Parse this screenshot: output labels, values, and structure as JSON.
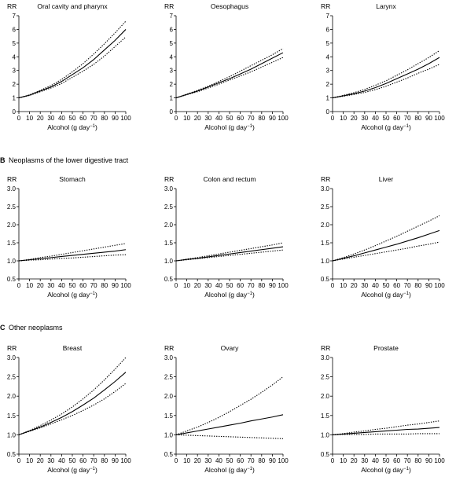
{
  "sections": [
    {
      "label": "B",
      "title": "Neoplasms of the lower digestive tract"
    },
    {
      "label": "C",
      "title": "Other neoplasms"
    }
  ],
  "chart_data": [
    {
      "type": "line",
      "title": "Oral cavity and pharynx",
      "ylabel": "RR",
      "xlabel": "Alcohol (g day",
      "xlabel_sup": "−1",
      "xlabel_end": ")",
      "xlim": [
        0,
        100
      ],
      "ylim": [
        0,
        7
      ],
      "xticks": [
        "0",
        "10",
        "20",
        "30",
        "40",
        "50",
        "60",
        "70",
        "80",
        "90",
        "100"
      ],
      "yticks": [
        "0",
        "1",
        "2",
        "3",
        "4",
        "5",
        "6",
        "7"
      ],
      "x": [
        0,
        10,
        20,
        30,
        40,
        50,
        60,
        70,
        80,
        90,
        100
      ],
      "series": [
        {
          "style": "solid",
          "values": [
            1.0,
            1.2,
            1.5,
            1.8,
            2.2,
            2.7,
            3.2,
            3.8,
            4.5,
            5.2,
            6.0
          ]
        },
        {
          "style": "dotted",
          "values": [
            1.0,
            1.22,
            1.55,
            1.9,
            2.35,
            2.9,
            3.5,
            4.2,
            4.95,
            5.75,
            6.6
          ]
        },
        {
          "style": "dotted",
          "values": [
            1.0,
            1.18,
            1.45,
            1.72,
            2.05,
            2.5,
            2.95,
            3.45,
            4.05,
            4.75,
            5.45
          ]
        }
      ]
    },
    {
      "type": "line",
      "title": "Oesophagus",
      "ylabel": "RR",
      "xlabel": "Alcohol (g day",
      "xlabel_sup": "−1",
      "xlabel_end": ")",
      "xlim": [
        0,
        100
      ],
      "ylim": [
        0,
        7
      ],
      "xticks": [
        "0",
        "10",
        "20",
        "30",
        "40",
        "50",
        "60",
        "70",
        "80",
        "90",
        "100"
      ],
      "yticks": [
        "0",
        "1",
        "2",
        "3",
        "4",
        "5",
        "6",
        "7"
      ],
      "x": [
        0,
        10,
        20,
        30,
        40,
        50,
        60,
        70,
        80,
        90,
        100
      ],
      "series": [
        {
          "style": "solid",
          "values": [
            1.0,
            1.25,
            1.5,
            1.8,
            2.1,
            2.4,
            2.75,
            3.1,
            3.5,
            3.9,
            4.3
          ]
        },
        {
          "style": "dotted",
          "values": [
            1.0,
            1.27,
            1.55,
            1.85,
            2.2,
            2.55,
            2.95,
            3.35,
            3.75,
            4.15,
            4.6
          ]
        },
        {
          "style": "dotted",
          "values": [
            1.0,
            1.23,
            1.45,
            1.72,
            2.0,
            2.3,
            2.6,
            2.9,
            3.25,
            3.6,
            3.95
          ]
        }
      ]
    },
    {
      "type": "line",
      "title": "Larynx",
      "ylabel": "RR",
      "xlabel": "Alcohol (g day",
      "xlabel_sup": "−1",
      "xlabel_end": ")",
      "xlim": [
        0,
        100
      ],
      "ylim": [
        0,
        7
      ],
      "xticks": [
        "0",
        "10",
        "20",
        "30",
        "40",
        "50",
        "60",
        "70",
        "80",
        "90",
        "100"
      ],
      "yticks": [
        "0",
        "1",
        "2",
        "3",
        "4",
        "5",
        "6",
        "7"
      ],
      "x": [
        0,
        10,
        20,
        30,
        40,
        50,
        60,
        70,
        80,
        90,
        100
      ],
      "series": [
        {
          "style": "solid",
          "values": [
            1.0,
            1.15,
            1.3,
            1.5,
            1.75,
            2.05,
            2.4,
            2.75,
            3.1,
            3.5,
            3.95
          ]
        },
        {
          "style": "dotted",
          "values": [
            1.0,
            1.18,
            1.38,
            1.62,
            1.92,
            2.25,
            2.65,
            3.05,
            3.5,
            3.95,
            4.45
          ]
        },
        {
          "style": "dotted",
          "values": [
            1.0,
            1.12,
            1.25,
            1.4,
            1.6,
            1.85,
            2.15,
            2.45,
            2.8,
            3.1,
            3.45
          ]
        }
      ]
    },
    {
      "type": "line",
      "title": "Stomach",
      "ylabel": "RR",
      "xlabel": "Alcohol (g day",
      "xlabel_sup": "−1",
      "xlabel_end": ")",
      "xlim": [
        0,
        100
      ],
      "ylim": [
        0.5,
        3.0
      ],
      "xticks": [
        "0",
        "10",
        "20",
        "30",
        "40",
        "50",
        "60",
        "70",
        "80",
        "90",
        "100"
      ],
      "yticks": [
        "0.5",
        "1.0",
        "1.5",
        "2.0",
        "2.5",
        "3.0"
      ],
      "x": [
        0,
        10,
        20,
        30,
        40,
        50,
        60,
        70,
        80,
        90,
        100
      ],
      "series": [
        {
          "style": "solid",
          "values": [
            1.0,
            1.03,
            1.06,
            1.09,
            1.12,
            1.15,
            1.18,
            1.21,
            1.24,
            1.27,
            1.31
          ]
        },
        {
          "style": "dotted",
          "values": [
            1.0,
            1.04,
            1.09,
            1.13,
            1.18,
            1.23,
            1.28,
            1.33,
            1.38,
            1.43,
            1.48
          ]
        },
        {
          "style": "dotted",
          "values": [
            1.0,
            1.02,
            1.03,
            1.05,
            1.07,
            1.08,
            1.1,
            1.12,
            1.14,
            1.16,
            1.17
          ]
        }
      ]
    },
    {
      "type": "line",
      "title": "Colon and rectum",
      "ylabel": "RR",
      "xlabel": "Alcohol (g day",
      "xlabel_sup": "−1",
      "xlabel_end": ")",
      "xlim": [
        0,
        100
      ],
      "ylim": [
        0.5,
        3.0
      ],
      "xticks": [
        "0",
        "10",
        "20",
        "30",
        "40",
        "50",
        "60",
        "70",
        "80",
        "90",
        "100"
      ],
      "yticks": [
        "0.5",
        "1.0",
        "1.5",
        "2.0",
        "2.5",
        "3.0"
      ],
      "x": [
        0,
        10,
        20,
        30,
        40,
        50,
        60,
        70,
        80,
        90,
        100
      ],
      "series": [
        {
          "style": "solid",
          "values": [
            1.0,
            1.04,
            1.07,
            1.11,
            1.15,
            1.19,
            1.23,
            1.27,
            1.31,
            1.35,
            1.39
          ]
        },
        {
          "style": "dotted",
          "values": [
            1.0,
            1.05,
            1.09,
            1.14,
            1.19,
            1.24,
            1.29,
            1.34,
            1.39,
            1.44,
            1.5
          ]
        },
        {
          "style": "dotted",
          "values": [
            1.0,
            1.03,
            1.06,
            1.09,
            1.12,
            1.15,
            1.18,
            1.21,
            1.24,
            1.27,
            1.3
          ]
        }
      ]
    },
    {
      "type": "line",
      "title": "Liver",
      "ylabel": "RR",
      "xlabel": "Alcohol (g day",
      "xlabel_sup": "−1",
      "xlabel_end": ")",
      "xlim": [
        0,
        100
      ],
      "ylim": [
        0.5,
        3.0
      ],
      "xticks": [
        "0",
        "10",
        "20",
        "30",
        "40",
        "50",
        "60",
        "70",
        "80",
        "90",
        "100"
      ],
      "yticks": [
        "0.5",
        "1.0",
        "1.5",
        "2.0",
        "2.5",
        "3.0"
      ],
      "x": [
        0,
        10,
        20,
        30,
        40,
        50,
        60,
        70,
        80,
        90,
        100
      ],
      "series": [
        {
          "style": "solid",
          "values": [
            1.0,
            1.07,
            1.14,
            1.22,
            1.3,
            1.38,
            1.46,
            1.55,
            1.64,
            1.74,
            1.84
          ]
        },
        {
          "style": "dotted",
          "values": [
            1.0,
            1.09,
            1.19,
            1.3,
            1.42,
            1.55,
            1.68,
            1.82,
            1.96,
            2.1,
            2.25
          ]
        },
        {
          "style": "dotted",
          "values": [
            1.0,
            1.05,
            1.1,
            1.15,
            1.2,
            1.25,
            1.3,
            1.35,
            1.41,
            1.46,
            1.52
          ]
        }
      ]
    },
    {
      "type": "line",
      "title": "Breast",
      "ylabel": "RR",
      "xlabel": "Alcohol (g day",
      "xlabel_sup": "−1",
      "xlabel_end": ")",
      "xlim": [
        0,
        100
      ],
      "ylim": [
        0.5,
        3.0
      ],
      "xticks": [
        "0",
        "10",
        "20",
        "30",
        "40",
        "50",
        "60",
        "70",
        "80",
        "90",
        "100"
      ],
      "yticks": [
        "0.5",
        "1.0",
        "1.5",
        "2.0",
        "2.5",
        "3.0"
      ],
      "x": [
        0,
        10,
        20,
        30,
        40,
        50,
        60,
        70,
        80,
        90,
        100
      ],
      "series": [
        {
          "style": "solid",
          "values": [
            1.0,
            1.1,
            1.2,
            1.32,
            1.45,
            1.6,
            1.77,
            1.95,
            2.16,
            2.38,
            2.62
          ]
        },
        {
          "style": "dotted",
          "values": [
            1.0,
            1.11,
            1.24,
            1.38,
            1.54,
            1.72,
            1.93,
            2.16,
            2.42,
            2.7,
            3.0
          ]
        },
        {
          "style": "dotted",
          "values": [
            1.0,
            1.09,
            1.18,
            1.28,
            1.39,
            1.5,
            1.63,
            1.77,
            1.93,
            2.12,
            2.33
          ]
        }
      ]
    },
    {
      "type": "line",
      "title": "Ovary",
      "ylabel": "RR",
      "xlabel": "Alcohol (g day",
      "xlabel_sup": "−1",
      "xlabel_end": ")",
      "xlim": [
        0,
        100
      ],
      "ylim": [
        0.5,
        3.0
      ],
      "xticks": [
        "0",
        "10",
        "20",
        "30",
        "40",
        "50",
        "60",
        "70",
        "80",
        "90",
        "100"
      ],
      "yticks": [
        "0.5",
        "1.0",
        "1.5",
        "2.0",
        "2.5",
        "3.0"
      ],
      "x": [
        0,
        10,
        20,
        30,
        40,
        50,
        60,
        70,
        80,
        90,
        100
      ],
      "series": [
        {
          "style": "solid",
          "values": [
            1.0,
            1.05,
            1.1,
            1.15,
            1.2,
            1.25,
            1.3,
            1.36,
            1.41,
            1.46,
            1.52
          ]
        },
        {
          "style": "dotted",
          "values": [
            1.0,
            1.1,
            1.2,
            1.32,
            1.45,
            1.6,
            1.76,
            1.92,
            2.1,
            2.29,
            2.5
          ]
        },
        {
          "style": "dotted",
          "values": [
            1.0,
            0.99,
            0.98,
            0.97,
            0.96,
            0.95,
            0.94,
            0.93,
            0.92,
            0.91,
            0.9
          ]
        }
      ]
    },
    {
      "type": "line",
      "title": "Prostate",
      "ylabel": "RR",
      "xlabel": "Alcohol (g day",
      "xlabel_sup": "−1",
      "xlabel_end": ")",
      "xlim": [
        0,
        100
      ],
      "ylim": [
        0.5,
        3.0
      ],
      "xticks": [
        "0",
        "10",
        "20",
        "30",
        "40",
        "50",
        "60",
        "70",
        "80",
        "90",
        "100"
      ],
      "yticks": [
        "0.5",
        "1.0",
        "1.5",
        "2.0",
        "2.5",
        "3.0"
      ],
      "x": [
        0,
        10,
        20,
        30,
        40,
        50,
        60,
        70,
        80,
        90,
        100
      ],
      "series": [
        {
          "style": "solid",
          "values": [
            1.0,
            1.02,
            1.04,
            1.06,
            1.08,
            1.1,
            1.12,
            1.14,
            1.15,
            1.17,
            1.19
          ]
        },
        {
          "style": "dotted",
          "values": [
            1.0,
            1.03,
            1.07,
            1.1,
            1.14,
            1.17,
            1.21,
            1.25,
            1.28,
            1.32,
            1.36
          ]
        },
        {
          "style": "dotted",
          "values": [
            1.0,
            1.01,
            1.01,
            1.01,
            1.02,
            1.02,
            1.02,
            1.02,
            1.03,
            1.03,
            1.03
          ]
        }
      ]
    }
  ]
}
